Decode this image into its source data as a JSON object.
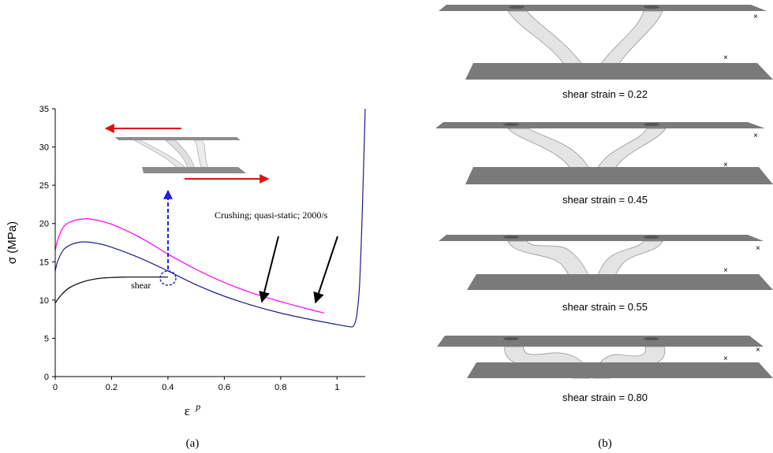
{
  "chart_data": {
    "type": "line",
    "xlabel": "ε",
    "xlabel_superscript": "p",
    "ylabel": "σ (MPa)",
    "xlim": [
      0,
      1.1
    ],
    "ylim": [
      0,
      35
    ],
    "x_ticks": [
      0,
      0.2,
      0.4,
      0.6,
      0.8,
      1
    ],
    "x_tick_labels": [
      "0",
      "0.2",
      "0.4",
      "0.6",
      "0.8",
      "1"
    ],
    "y_ticks": [
      0,
      5,
      10,
      15,
      20,
      25,
      30,
      35
    ],
    "y_tick_labels": [
      "0",
      "5",
      "10",
      "15",
      "20",
      "25",
      "30",
      "35"
    ],
    "grid": false,
    "series": [
      {
        "name": "shear",
        "color": "#000000",
        "x": [
          0,
          0.02,
          0.05,
          0.1,
          0.15,
          0.2,
          0.25,
          0.3,
          0.33,
          0.36,
          0.4
        ],
        "y": [
          9.6,
          10.6,
          11.6,
          12.4,
          12.8,
          12.95,
          13.0,
          13.0,
          13.0,
          13.0,
          13.0
        ]
      },
      {
        "name": "quasi-static",
        "color": "#1c1c8c",
        "x": [
          0,
          0.01,
          0.03,
          0.06,
          0.1,
          0.15,
          0.2,
          0.3,
          0.4,
          0.5,
          0.6,
          0.7,
          0.8,
          0.9,
          1.0,
          1.03,
          1.05,
          1.06,
          1.07,
          1.08,
          1.09,
          1.1
        ],
        "y": [
          13.8,
          15.2,
          16.6,
          17.3,
          17.6,
          17.4,
          16.9,
          15.5,
          13.8,
          12.0,
          10.5,
          9.3,
          8.3,
          7.5,
          6.8,
          6.6,
          6.5,
          6.7,
          8.0,
          12.0,
          22.0,
          35.0
        ]
      },
      {
        "name": "2000/s",
        "color": "#ff00ff",
        "x": [
          0,
          0.01,
          0.03,
          0.06,
          0.1,
          0.13,
          0.2,
          0.3,
          0.4,
          0.5,
          0.6,
          0.7,
          0.8,
          0.9,
          0.955
        ],
        "y": [
          16.5,
          18.0,
          19.6,
          20.3,
          20.6,
          20.55,
          19.9,
          18.2,
          16.0,
          14.0,
          12.3,
          10.9,
          9.8,
          8.8,
          8.3
        ]
      }
    ],
    "annotations": {
      "shear_label": "shear",
      "crushing_label": "Crushing; quasi-static; 2000/s"
    },
    "panel_label": "(a)"
  },
  "panel_b": {
    "panel_label": "(b)",
    "frames": [
      {
        "caption": "shear strain = 0.22"
      },
      {
        "caption": "shear strain = 0.45"
      },
      {
        "caption": "shear strain = 0.55"
      },
      {
        "caption": "shear strain = 0.80"
      }
    ]
  },
  "colors": {
    "plate": "#7a7a7a",
    "strut": "#e6e6e6",
    "arrow_red": "#e01010",
    "arrow_blue": "#2020e0",
    "axis": "#000000"
  }
}
